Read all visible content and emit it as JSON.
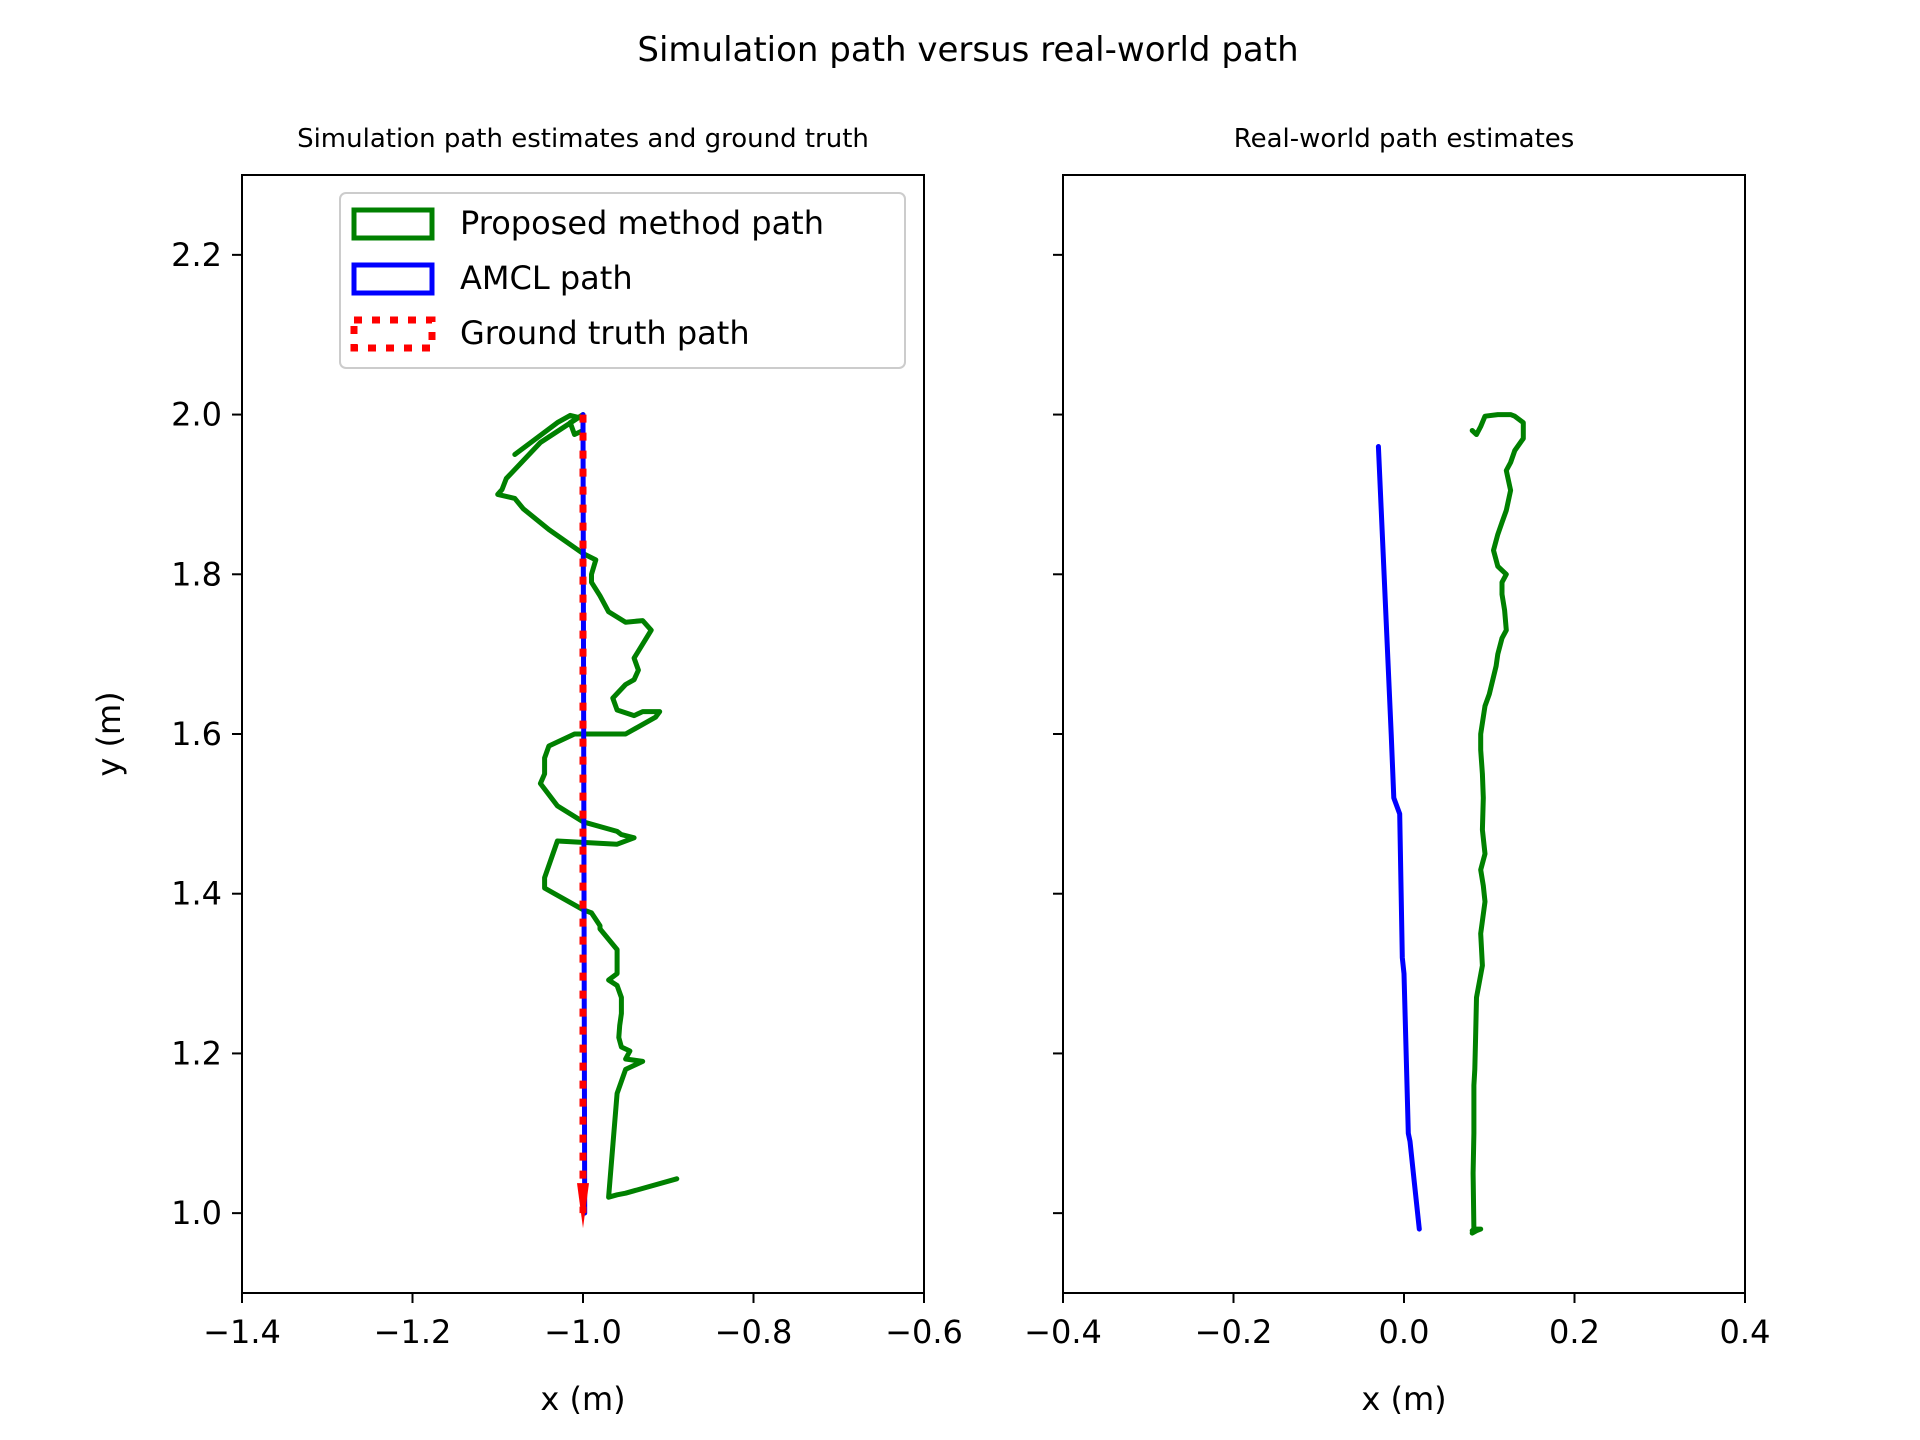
{
  "suptitle": "Simulation path versus real-world path",
  "colors": {
    "proposed": "#008000",
    "amcl": "#0000ff",
    "ground_truth": "#ff0000"
  },
  "chart_data": [
    {
      "type": "line",
      "title": "Simulation path estimates and ground truth",
      "xlabel": "x (m)",
      "ylabel": "y (m)",
      "xlim": [
        -1.4,
        -0.6
      ],
      "ylim": [
        0.9,
        2.3
      ],
      "xticks": [
        -1.4,
        -1.2,
        -1.0,
        -0.8,
        -0.6
      ],
      "xtick_labels": [
        "−1.4",
        "−1.2",
        "−1.0",
        "−0.8",
        "−0.6"
      ],
      "yticks": [
        1.0,
        1.2,
        1.4,
        1.6,
        1.8,
        2.0,
        2.2
      ],
      "ytick_labels": [
        "1.0",
        "1.2",
        "1.4",
        "1.6",
        "1.8",
        "2.0",
        "2.2"
      ],
      "legend": {
        "placement": "upper-right",
        "entries": [
          "Proposed method path",
          "AMCL path",
          "Ground truth path"
        ]
      },
      "series": [
        {
          "name": "Proposed method path",
          "color": "#008000",
          "style": "solid",
          "x": [
            -1.08,
            -1.03,
            -1.015,
            -1.0,
            -1.0,
            -1.01,
            -1.015,
            -1.0,
            -1.05,
            -1.09,
            -1.095,
            -1.1,
            -1.08,
            -1.07,
            -1.04,
            -1.0,
            -0.985,
            -0.99,
            -0.99,
            -0.98,
            -0.97,
            -0.95,
            -0.93,
            -0.92,
            -0.94,
            -0.935,
            -0.94,
            -0.95,
            -0.965,
            -0.96,
            -0.94,
            -0.93,
            -0.91,
            -0.915,
            -0.95,
            -1.01,
            -1.04,
            -1.045,
            -1.045,
            -1.05,
            -1.03,
            -1.0,
            -0.96,
            -0.955,
            -0.94,
            -0.96,
            -1.03,
            -1.045,
            -1.045,
            -1.0,
            -0.99,
            -0.98,
            -0.98,
            -0.96,
            -0.96,
            -0.97,
            -0.96,
            -0.955,
            -0.955,
            -0.957,
            -0.958,
            -0.955,
            -0.945,
            -0.95,
            -0.93,
            -0.95,
            -0.96,
            -0.97,
            -0.96,
            -0.95,
            -0.89
          ],
          "y": [
            1.95,
            1.99,
            1.999,
            1.995,
            1.98,
            1.975,
            1.99,
            2.0,
            1.965,
            1.92,
            1.906,
            1.9,
            1.895,
            1.882,
            1.856,
            1.826,
            1.818,
            1.8,
            1.79,
            1.773,
            1.753,
            1.74,
            1.742,
            1.73,
            1.695,
            1.68,
            1.668,
            1.662,
            1.645,
            1.63,
            1.623,
            1.628,
            1.628,
            1.621,
            1.6,
            1.6,
            1.585,
            1.57,
            1.55,
            1.538,
            1.51,
            1.49,
            1.478,
            1.474,
            1.47,
            1.462,
            1.466,
            1.42,
            1.407,
            1.38,
            1.376,
            1.36,
            1.356,
            1.33,
            1.3,
            1.292,
            1.285,
            1.27,
            1.25,
            1.235,
            1.22,
            1.208,
            1.203,
            1.193,
            1.19,
            1.18,
            1.15,
            1.02,
            1.023,
            1.025,
            1.043
          ]
        },
        {
          "name": "AMCL path",
          "color": "#0000ff",
          "style": "solid",
          "x": [
            -1.0,
            -0.998
          ],
          "y": [
            2.0,
            1.0
          ]
        },
        {
          "name": "Ground truth path",
          "color": "#ff0000",
          "style": "dotted",
          "x": [
            -1.0,
            -1.0
          ],
          "y": [
            2.0,
            1.0
          ]
        }
      ]
    },
    {
      "type": "line",
      "title": "Real-world path estimates",
      "xlabel": "x (m)",
      "xlim": [
        -0.4,
        0.4
      ],
      "ylim": [
        0.9,
        2.3
      ],
      "xticks": [
        -0.4,
        -0.2,
        0.0,
        0.2,
        0.4
      ],
      "xtick_labels": [
        "−0.4",
        "−0.2",
        "0.0",
        "0.2",
        "0.4"
      ],
      "yticks": [
        1.0,
        1.2,
        1.4,
        1.6,
        1.8,
        2.0,
        2.2
      ],
      "series": [
        {
          "name": "AMCL path",
          "color": "#0000ff",
          "style": "solid",
          "x": [
            -0.03,
            -0.015,
            -0.012,
            -0.005,
            -0.002,
            0.0,
            0.005,
            0.007,
            0.012,
            0.018
          ],
          "y": [
            1.96,
            1.6,
            1.52,
            1.5,
            1.32,
            1.3,
            1.1,
            1.09,
            1.04,
            0.98
          ]
        },
        {
          "name": "Proposed method path",
          "color": "#008000",
          "style": "solid",
          "x": [
            0.08,
            0.085,
            0.09,
            0.095,
            0.11,
            0.125,
            0.13,
            0.14,
            0.14,
            0.13,
            0.125,
            0.12,
            0.125,
            0.12,
            0.115,
            0.11,
            0.105,
            0.11,
            0.115,
            0.12,
            0.115,
            0.115,
            0.118,
            0.12,
            0.115,
            0.11,
            0.108,
            0.1,
            0.095,
            0.09,
            0.09,
            0.092,
            0.093,
            0.092,
            0.095,
            0.09,
            0.093,
            0.095,
            0.09,
            0.092,
            0.085,
            0.084,
            0.083,
            0.082,
            0.082,
            0.081,
            0.082,
            0.08,
            0.085,
            0.09,
            0.082,
            0.08
          ],
          "y": [
            1.98,
            1.975,
            1.985,
            1.998,
            2.0,
            2.0,
            1.998,
            1.99,
            1.97,
            1.955,
            1.94,
            1.93,
            1.905,
            1.88,
            1.865,
            1.85,
            1.83,
            1.81,
            1.805,
            1.8,
            1.79,
            1.775,
            1.755,
            1.73,
            1.72,
            1.7,
            1.685,
            1.65,
            1.635,
            1.6,
            1.58,
            1.55,
            1.52,
            1.48,
            1.45,
            1.43,
            1.41,
            1.39,
            1.35,
            1.31,
            1.27,
            1.22,
            1.18,
            1.16,
            1.1,
            1.05,
            0.98,
            0.975,
            0.978,
            0.98,
            0.98,
            0.978
          ]
        }
      ]
    }
  ]
}
